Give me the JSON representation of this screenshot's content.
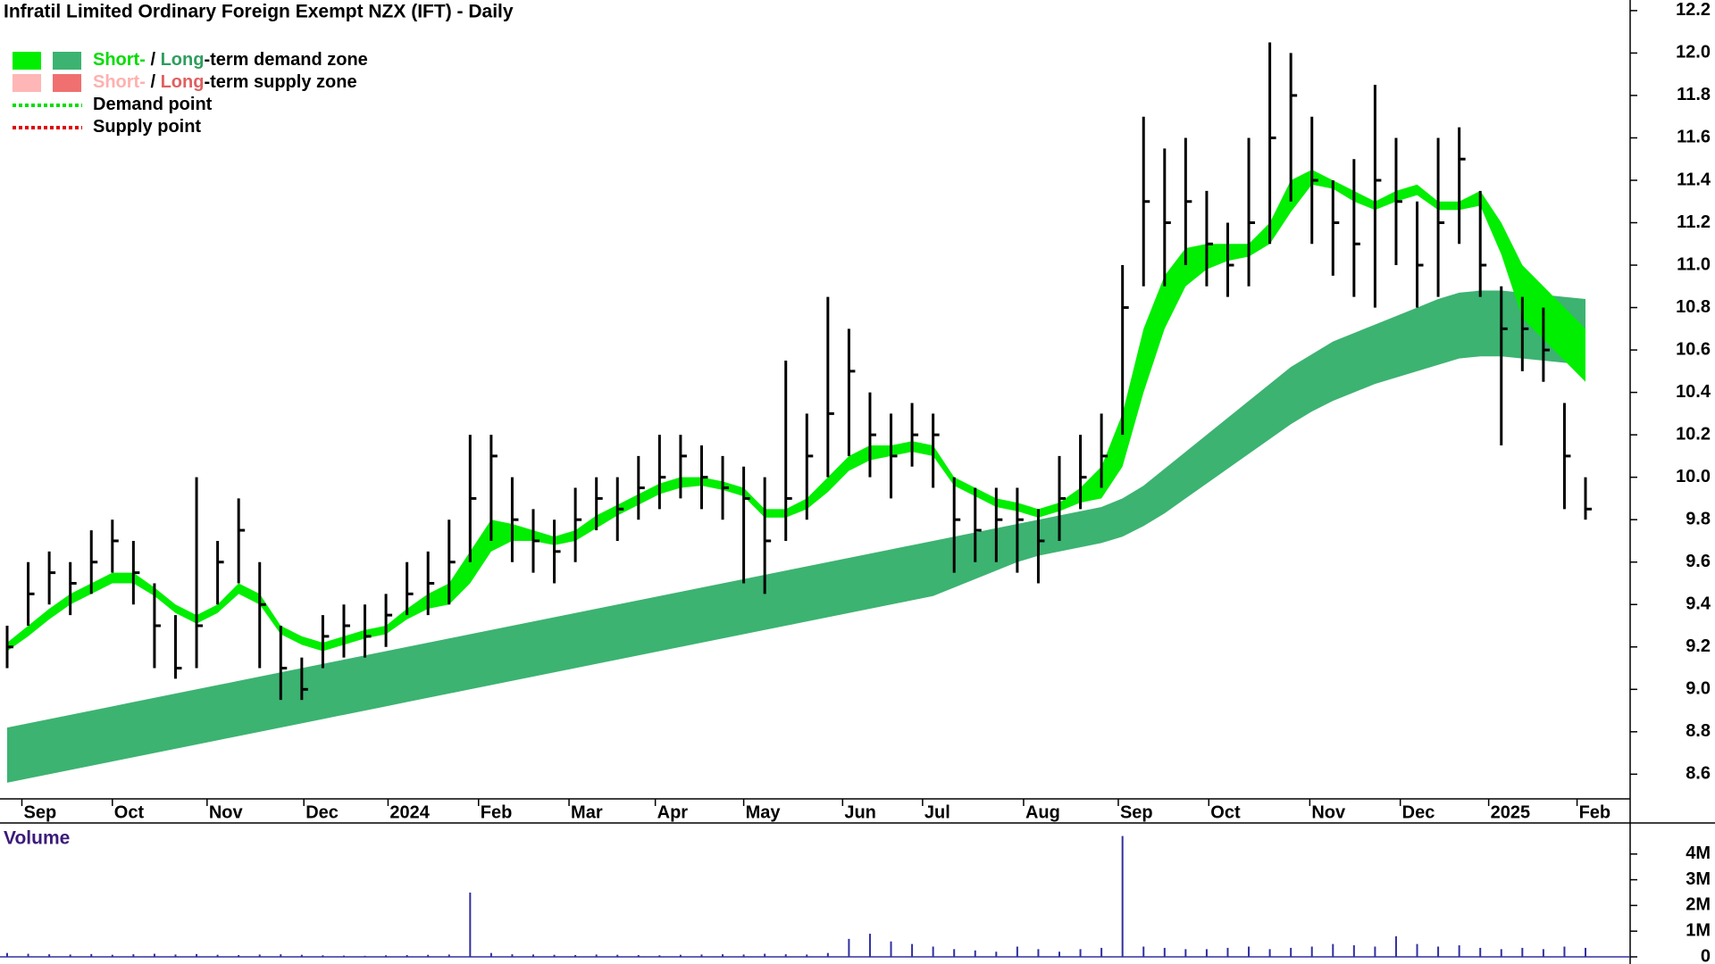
{
  "chart_data": {
    "type": "candlestick",
    "title": "Infratil Limited Ordinary Foreign Exempt NZX (IFT) - Daily",
    "ylim": [
      8.45,
      12.25
    ],
    "yticks": [
      8.6,
      8.8,
      {
        "value": 9,
        "label": "9.0"
      },
      9.2,
      9.4,
      9.6,
      9.8,
      {
        "value": 10,
        "label": "10.0"
      },
      10.2,
      10.4,
      10.6,
      10.8,
      {
        "value": 11,
        "label": "11.0"
      },
      11.2,
      11.4,
      11.6,
      11.8,
      {
        "value": 12,
        "label": "12.0"
      },
      12.2
    ],
    "xlim": [
      0,
      75
    ],
    "xticks": [
      {
        "value": 0.7,
        "label": "Sep"
      },
      {
        "value": 5.0,
        "label": "Oct"
      },
      {
        "value": 9.5,
        "label": "Nov"
      },
      {
        "value": 14.1,
        "label": "Dec"
      },
      {
        "value": 18.1,
        "label": "2024"
      },
      {
        "value": 22.4,
        "label": "Feb"
      },
      {
        "value": 26.7,
        "label": "Mar"
      },
      {
        "value": 30.8,
        "label": "Apr"
      },
      {
        "value": 35.0,
        "label": "May"
      },
      {
        "value": 39.7,
        "label": "Jun"
      },
      {
        "value": 43.5,
        "label": "Jul"
      },
      {
        "value": 48.3,
        "label": "Aug"
      },
      {
        "value": 52.8,
        "label": "Sep"
      },
      {
        "value": 57.1,
        "label": "Oct"
      },
      {
        "value": 61.9,
        "label": "Nov"
      },
      {
        "value": 66.2,
        "label": "Dec"
      },
      {
        "value": 70.4,
        "label": "2025"
      },
      {
        "value": 74.6,
        "label": "Feb"
      }
    ],
    "price": {
      "color": "#000000",
      "high": [
        9.3,
        9.6,
        9.65,
        9.6,
        9.75,
        9.8,
        9.7,
        9.5,
        9.35,
        10.0,
        9.7,
        9.9,
        9.6,
        9.3,
        9.15,
        9.35,
        9.4,
        9.4,
        9.45,
        9.6,
        9.65,
        9.8,
        10.2,
        10.2,
        10.0,
        9.85,
        9.8,
        9.95,
        10.0,
        10.0,
        10.1,
        10.2,
        10.2,
        10.15,
        10.1,
        10.05,
        10.0,
        10.55,
        10.3,
        10.85,
        10.7,
        10.4,
        10.3,
        10.35,
        10.3,
        10.0,
        9.95,
        9.95,
        9.95,
        9.85,
        10.1,
        10.2,
        10.3,
        11.0,
        11.7,
        11.55,
        11.6,
        11.35,
        11.2,
        11.6,
        12.05,
        12.0,
        11.7,
        11.4,
        11.5,
        11.85,
        11.6,
        11.3,
        11.6,
        11.65,
        11.35,
        10.9,
        10.85,
        10.8,
        10.35,
        10.0
      ],
      "low": [
        9.1,
        9.3,
        9.4,
        9.35,
        9.45,
        9.55,
        9.4,
        9.1,
        9.05,
        9.1,
        9.4,
        9.5,
        9.1,
        8.95,
        8.95,
        9.1,
        9.15,
        9.15,
        9.2,
        9.35,
        9.35,
        9.4,
        9.6,
        9.7,
        9.6,
        9.55,
        9.5,
        9.6,
        9.75,
        9.7,
        9.8,
        9.85,
        9.9,
        9.85,
        9.8,
        9.5,
        9.45,
        9.7,
        9.8,
        10.0,
        10.1,
        10.0,
        9.9,
        10.05,
        9.95,
        9.55,
        9.6,
        9.6,
        9.55,
        9.5,
        9.7,
        9.85,
        9.95,
        10.2,
        10.9,
        10.9,
        11.0,
        10.9,
        10.85,
        10.9,
        11.1,
        11.3,
        11.1,
        10.95,
        10.85,
        10.8,
        11.0,
        10.8,
        10.85,
        11.1,
        10.85,
        10.15,
        10.5,
        10.45,
        9.85,
        9.8
      ],
      "close": [
        9.2,
        9.45,
        9.55,
        9.5,
        9.6,
        9.7,
        9.55,
        9.3,
        9.1,
        9.3,
        9.6,
        9.75,
        9.4,
        9.1,
        9.0,
        9.25,
        9.3,
        9.25,
        9.35,
        9.45,
        9.5,
        9.6,
        9.9,
        10.1,
        9.8,
        9.7,
        9.65,
        9.8,
        9.9,
        9.85,
        9.95,
        10.0,
        10.1,
        10.0,
        9.95,
        9.9,
        9.7,
        9.9,
        10.1,
        10.3,
        10.5,
        10.2,
        10.1,
        10.2,
        10.2,
        9.8,
        9.75,
        9.8,
        9.8,
        9.7,
        9.9,
        10.0,
        10.1,
        10.8,
        11.3,
        11.2,
        11.3,
        11.1,
        11.0,
        11.2,
        11.6,
        11.8,
        11.4,
        11.2,
        11.1,
        11.4,
        11.3,
        11.0,
        11.2,
        11.5,
        11.0,
        10.7,
        10.7,
        10.6,
        10.1,
        9.85
      ]
    },
    "bands": [
      {
        "color": "#3cb371",
        "upper": [
          8.82,
          8.84,
          8.86,
          8.88,
          8.9,
          8.92,
          8.94,
          8.96,
          8.98,
          9.0,
          9.02,
          9.04,
          9.06,
          9.08,
          9.1,
          9.12,
          9.14,
          9.16,
          9.18,
          9.2,
          9.22,
          9.24,
          9.26,
          9.28,
          9.3,
          9.32,
          9.34,
          9.36,
          9.38,
          9.4,
          9.42,
          9.44,
          9.46,
          9.48,
          9.5,
          9.52,
          9.54,
          9.56,
          9.58,
          9.6,
          9.62,
          9.64,
          9.66,
          9.68,
          9.7,
          9.72,
          9.74,
          9.76,
          9.78,
          9.8,
          9.82,
          9.84,
          9.86,
          9.9,
          9.96,
          10.04,
          10.12,
          10.2,
          10.28,
          10.36,
          10.44,
          10.52,
          10.58,
          10.64,
          10.68,
          10.72,
          10.76,
          10.8,
          10.84,
          10.87,
          10.88,
          10.88,
          10.87,
          10.86,
          10.85,
          10.84
        ],
        "lower": [
          8.56,
          8.58,
          8.6,
          8.62,
          8.64,
          8.66,
          8.68,
          8.7,
          8.72,
          8.74,
          8.76,
          8.78,
          8.8,
          8.82,
          8.84,
          8.86,
          8.88,
          8.9,
          8.92,
          8.94,
          8.96,
          8.98,
          9.0,
          9.02,
          9.04,
          9.06,
          9.08,
          9.1,
          9.12,
          9.14,
          9.16,
          9.18,
          9.2,
          9.22,
          9.24,
          9.26,
          9.28,
          9.3,
          9.32,
          9.34,
          9.36,
          9.38,
          9.4,
          9.42,
          9.44,
          9.48,
          9.52,
          9.56,
          9.6,
          9.63,
          9.65,
          9.67,
          9.69,
          9.72,
          9.77,
          9.83,
          9.9,
          9.97,
          10.04,
          10.11,
          10.18,
          10.25,
          10.31,
          10.36,
          10.4,
          10.44,
          10.47,
          10.5,
          10.53,
          10.56,
          10.57,
          10.57,
          10.56,
          10.55,
          10.54,
          10.53
        ]
      },
      {
        "color": "#00ee00",
        "upper": [
          9.22,
          9.3,
          9.38,
          9.45,
          9.5,
          9.55,
          9.55,
          9.48,
          9.4,
          9.35,
          9.4,
          9.5,
          9.45,
          9.3,
          9.25,
          9.22,
          9.25,
          9.28,
          9.3,
          9.38,
          9.45,
          9.5,
          9.65,
          9.8,
          9.78,
          9.75,
          9.72,
          9.75,
          9.82,
          9.87,
          9.92,
          9.97,
          10.0,
          10.0,
          9.98,
          9.95,
          9.85,
          9.85,
          9.9,
          10.0,
          10.1,
          10.15,
          10.15,
          10.17,
          10.15,
          10.0,
          9.95,
          9.9,
          9.88,
          9.85,
          9.88,
          9.95,
          10.05,
          10.3,
          10.7,
          10.95,
          11.08,
          11.1,
          11.1,
          11.1,
          11.2,
          11.4,
          11.45,
          11.4,
          11.35,
          11.3,
          11.35,
          11.38,
          11.3,
          11.3,
          11.35,
          11.2,
          11.0,
          10.9,
          10.8,
          10.7
        ],
        "lower": [
          9.18,
          9.25,
          9.33,
          9.4,
          9.45,
          9.5,
          9.5,
          9.44,
          9.36,
          9.31,
          9.36,
          9.45,
          9.4,
          9.26,
          9.21,
          9.18,
          9.21,
          9.24,
          9.26,
          9.33,
          9.38,
          9.4,
          9.5,
          9.65,
          9.7,
          9.7,
          9.68,
          9.7,
          9.76,
          9.82,
          9.87,
          9.92,
          9.95,
          9.96,
          9.94,
          9.91,
          9.81,
          9.81,
          9.85,
          9.93,
          10.03,
          10.08,
          10.1,
          10.12,
          10.1,
          9.96,
          9.91,
          9.86,
          9.84,
          9.81,
          9.84,
          9.88,
          9.9,
          10.05,
          10.4,
          10.7,
          10.9,
          10.98,
          11.02,
          11.04,
          11.1,
          11.25,
          11.38,
          11.36,
          11.3,
          11.26,
          11.3,
          11.33,
          11.26,
          11.26,
          11.28,
          11.05,
          10.75,
          10.65,
          10.55,
          10.45
        ]
      }
    ],
    "legend": [
      {
        "parts": [
          "Short-",
          " / ",
          "Long",
          "-term demand zone"
        ],
        "part_colors": [
          "#00dd00",
          "#000000",
          "#2e9e5e",
          "#000000"
        ],
        "swatches": [
          "#00ee00",
          "#3cb371"
        ]
      },
      {
        "parts": [
          "Short-",
          " / ",
          "Long",
          "-term supply zone"
        ],
        "part_colors": [
          "#ffb0b0",
          "#000000",
          "#e06060",
          "#000000"
        ],
        "swatches": [
          "#ffb6b6",
          "#f07070"
        ]
      },
      {
        "parts": [
          "Demand point"
        ],
        "part_colors": [
          "#000000"
        ],
        "line": "#00dd00"
      },
      {
        "parts": [
          "Supply point"
        ],
        "part_colors": [
          "#000000"
        ],
        "line": "#dd0000"
      }
    ],
    "volume": {
      "title": "Volume",
      "color": "#3030a0",
      "ylim": [
        0,
        5000000
      ],
      "yticks": [
        0,
        {
          "value": 1000000,
          "label": "1M"
        },
        {
          "value": 2000000,
          "label": "2M"
        },
        {
          "value": 3000000,
          "label": "3M"
        },
        {
          "value": 4000000,
          "label": "4M"
        }
      ],
      "values": [
        150000,
        120000,
        100000,
        90000,
        110000,
        80000,
        100000,
        120000,
        90000,
        110000,
        80000,
        70000,
        90000,
        100000,
        80000,
        60000,
        50000,
        40000,
        60000,
        70000,
        80000,
        90000,
        2500000,
        150000,
        100000,
        90000,
        80000,
        70000,
        90000,
        80000,
        70000,
        60000,
        80000,
        90000,
        100000,
        90000,
        120000,
        100000,
        90000,
        150000,
        700000,
        900000,
        600000,
        500000,
        400000,
        300000,
        250000,
        200000,
        400000,
        300000,
        200000,
        300000,
        350000,
        4700000,
        400000,
        350000,
        300000,
        300000,
        350000,
        400000,
        300000,
        350000,
        400000,
        500000,
        450000,
        400000,
        800000,
        500000,
        400000,
        450000,
        350000,
        300000,
        350000,
        300000,
        400000,
        350000
      ]
    }
  }
}
